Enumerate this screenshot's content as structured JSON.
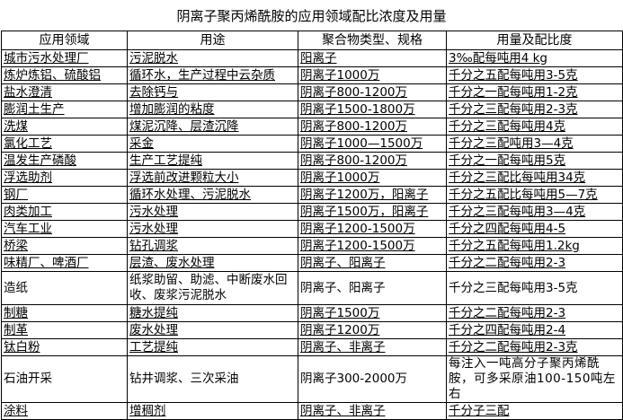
{
  "title": "阴离子聚丙烯酰胺的应用领域配比浓度及用量",
  "headers": [
    "应用领域",
    "用途",
    "聚合物类型、规格",
    "用量及配比度"
  ],
  "rows": [
    [
      "城市污水处理厂",
      "污泥脱水",
      "阳离子",
      "3‰配每吨用4 kg"
    ],
    [
      "炼炉炼铝、硫酸铝",
      "循环水，生产过程中云杂质",
      "阴离子1000万",
      "千分之五配每吨用3-5克"
    ],
    [
      "盐水澄清",
      "去除钙与",
      "阴离子800-1200万",
      "千分之一配每吨用1-2克"
    ],
    [
      "膨润土生产",
      "增加膨润的粘度",
      "阴离子1500-1800万",
      "千分之三配每吨用2-3克"
    ],
    [
      "洗煤",
      "煤泥沉降、层渣沉降",
      "阴离子800-1200万",
      "千分之三配每吨用4克"
    ],
    [
      "氯化工艺",
      "采金",
      "阴离子1000—1500万",
      "千分之三配吨用3—4克"
    ],
    [
      "温发生产磷酸",
      "生产工艺提纯",
      "阴离子800-1200万",
      "千分之一配每吨用5克"
    ],
    [
      "浮选助剂",
      "浮选前改进颗粒大小",
      "阴离子1000万",
      "千分之三配比每吨用34克"
    ],
    [
      "钢厂",
      "循环水处理、污泥脱水",
      "阴离子1200万，阳离子",
      "千分之五配比每吨用5—7克"
    ],
    [
      "肉类加工",
      "污水处理",
      "阴离子1500万，阳离子",
      "千分之三配每吨用3—4克"
    ],
    [
      "汽车工业",
      "污水处理",
      "阴离子1200-1500万",
      "千分之四配每吨用4-5"
    ],
    [
      "桥梁",
      "钻孔调浆",
      "阴离子1200-1500万",
      "千分之五配每吨用1.2kg"
    ],
    [
      "味精厂、啤酒厂",
      "层渣、废水处理",
      "阴离子、阳离子",
      "千分之二配每吨用2-3"
    ],
    [
      "造纸",
      "纸浆助留、助滤、中断废水回收、废浆污泥脱水",
      "阴离子、阳离子",
      "千分之三配每吨用3-5克"
    ],
    [
      "制糖",
      "糖水提纯",
      "阴离子1500万",
      "千分之二配每吨用2-3"
    ],
    [
      "制革",
      "废水处理",
      "阴离子1200万",
      "千分之四配每吨用2-4"
    ],
    [
      "钛白粉",
      "工艺提纯",
      "阴离子、非离子",
      "千分之二配每吨用2-3克"
    ],
    [
      "石油开采",
      "钻井调浆、三次采油",
      "阴离子300-2000万",
      "每注入一吨高分子聚丙烯酰胺，可多采原油100-150吨左右"
    ],
    [
      "涂料",
      "增稠剂",
      "阴离子、非离子",
      "千分子三配"
    ]
  ]
}
